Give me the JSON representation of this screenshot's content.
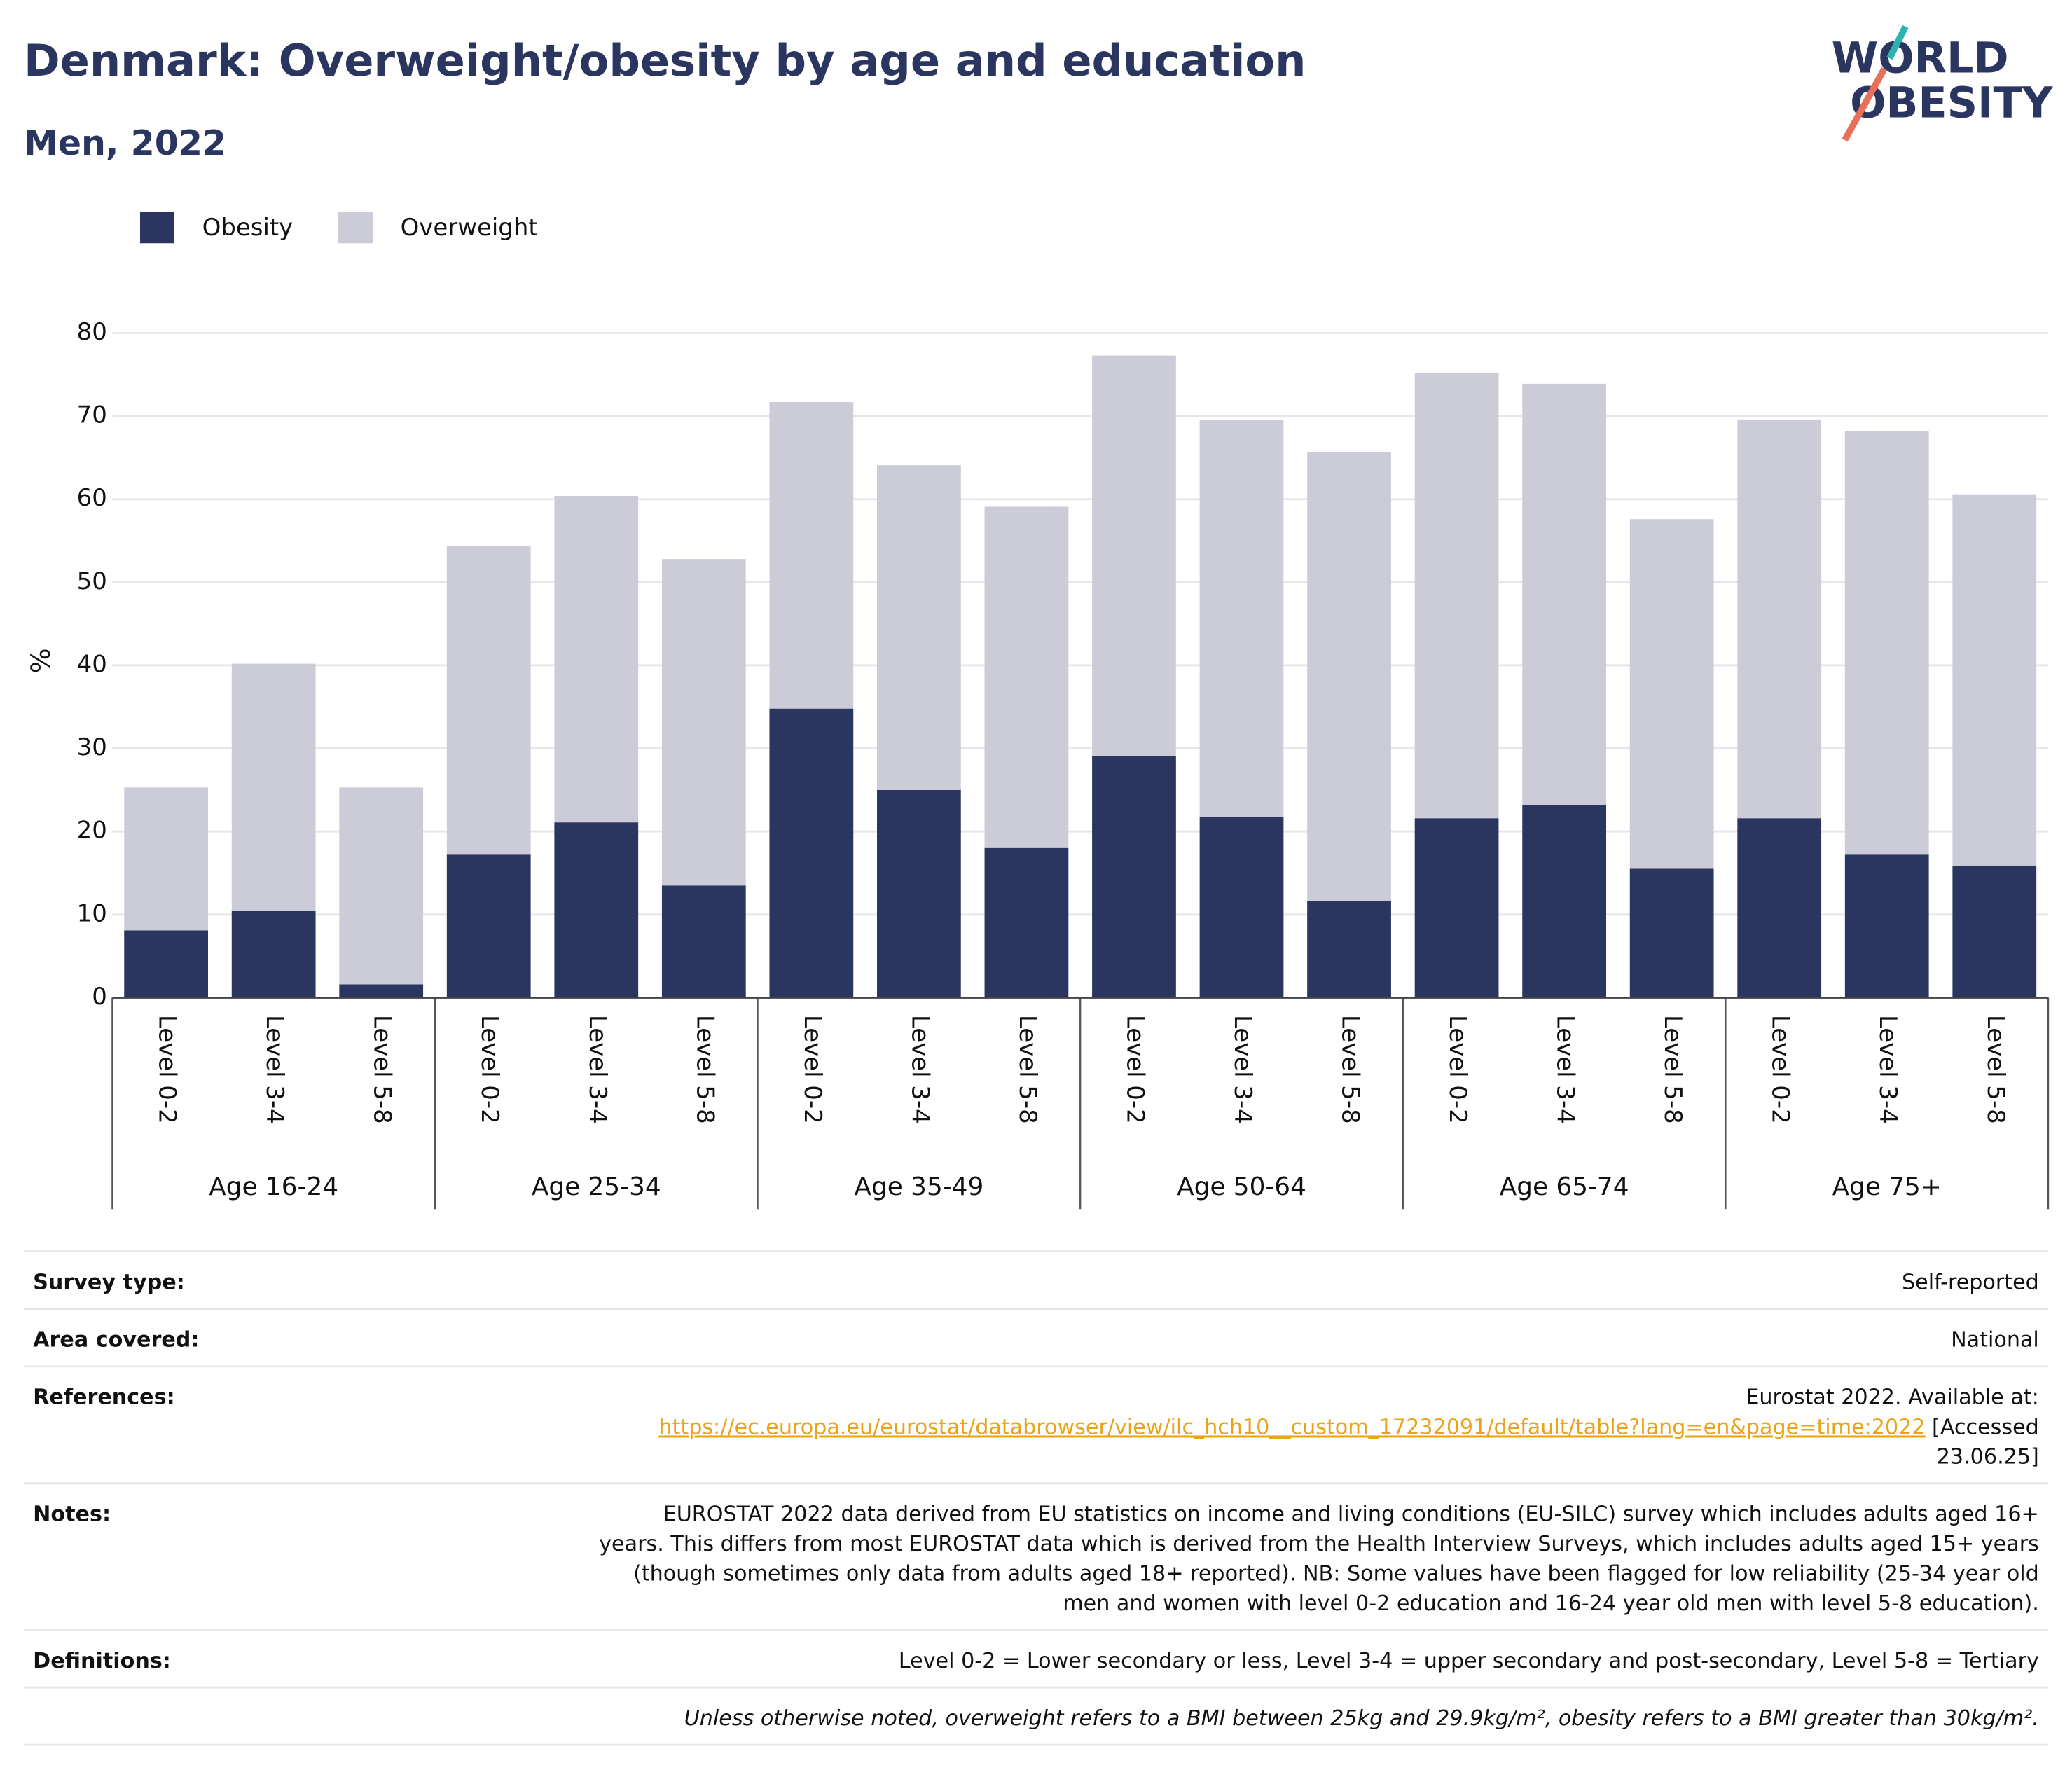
{
  "chart_data": {
    "type": "stacked_bar",
    "title": "Denmark: Overweight/obesity by age and education",
    "subtitle": "Men, 2022",
    "logo": [
      "WORLD",
      "OBESITY"
    ],
    "ylabel": "%",
    "groups": [
      {
        "name": "Age 16-24",
        "categories": [
          "Level 0-2",
          "Level 3-4",
          "Level 5-8"
        ]
      },
      {
        "name": "Age 25-34",
        "categories": [
          "Level 0-2",
          "Level 3-4",
          "Level 5-8"
        ]
      },
      {
        "name": "Age 35-49",
        "categories": [
          "Level 0-2",
          "Level 3-4",
          "Level 5-8"
        ]
      },
      {
        "name": "Age 50-64",
        "categories": [
          "Level 0-2",
          "Level 3-4",
          "Level 5-8"
        ]
      },
      {
        "name": "Age 65-74",
        "categories": [
          "Level 0-2",
          "Level 3-4",
          "Level 5-8"
        ]
      },
      {
        "name": "Age 75+",
        "categories": [
          "Level 0-2",
          "Level 3-4",
          "Level 5-8"
        ]
      }
    ],
    "series": [
      {
        "name": "Obesity",
        "color": "#2b3660",
        "values": [
          8.1,
          10.5,
          1.6,
          17.3,
          21.1,
          13.5,
          34.8,
          25.0,
          18.1,
          29.1,
          21.8,
          11.6,
          21.6,
          23.2,
          15.6,
          21.6,
          17.3,
          15.9
        ]
      },
      {
        "name": "Overweight",
        "color": "#cbccd8",
        "values": [
          17.2,
          29.7,
          23.7,
          37.1,
          39.3,
          39.3,
          36.9,
          39.1,
          41.0,
          48.2,
          47.7,
          54.1,
          53.6,
          50.7,
          42.0,
          48.0,
          50.9,
          44.7
        ]
      }
    ],
    "ylim": [
      0,
      80
    ],
    "yticks": [
      0,
      10,
      20,
      30,
      40,
      50,
      60,
      70,
      80
    ],
    "grid": true,
    "legend": "top-left"
  },
  "info": {
    "rows": [
      {
        "label": "Survey type:",
        "lines": [
          "Self-reported"
        ]
      },
      {
        "label": "Area covered:",
        "lines": [
          "National"
        ]
      },
      {
        "label": "References:",
        "lines": [
          "Eurostat 2022. Available at:"
        ],
        "link": "https://ec.europa.eu/eurostat/databrowser/view/ilc_hch10__custom_17232091/default/table?lang=en&page=time:2022",
        "link_after": "[Accessed",
        "lines_after": [
          "23.06.25]"
        ]
      },
      {
        "label": "Notes:",
        "lines": [
          "EUROSTAT 2022 data derived from EU statistics on income and living conditions (EU-SILC) survey which includes adults aged 16+",
          "years. This differs from most EUROSTAT data which is derived from the Health Interview Surveys, which includes adults aged 15+ years",
          "(though sometimes only data from adults aged 18+ reported). NB: Some values have been flagged for low reliability (25-34 year old",
          "men and women with level 0-2 education and 16-24 year old men with level 5-8 education)."
        ]
      },
      {
        "label": "Definitions:",
        "lines": [
          "Level 0-2 = Lower secondary or less, Level 3-4 = upper secondary and post-secondary, Level 5-8 = Tertiary"
        ]
      },
      {
        "lines": [
          "Unless otherwise noted, overweight refers to a BMI between 25kg and 29.9kg/m², obesity refers to a BMI greater than 30kg/m²."
        ],
        "italic": true
      }
    ]
  }
}
